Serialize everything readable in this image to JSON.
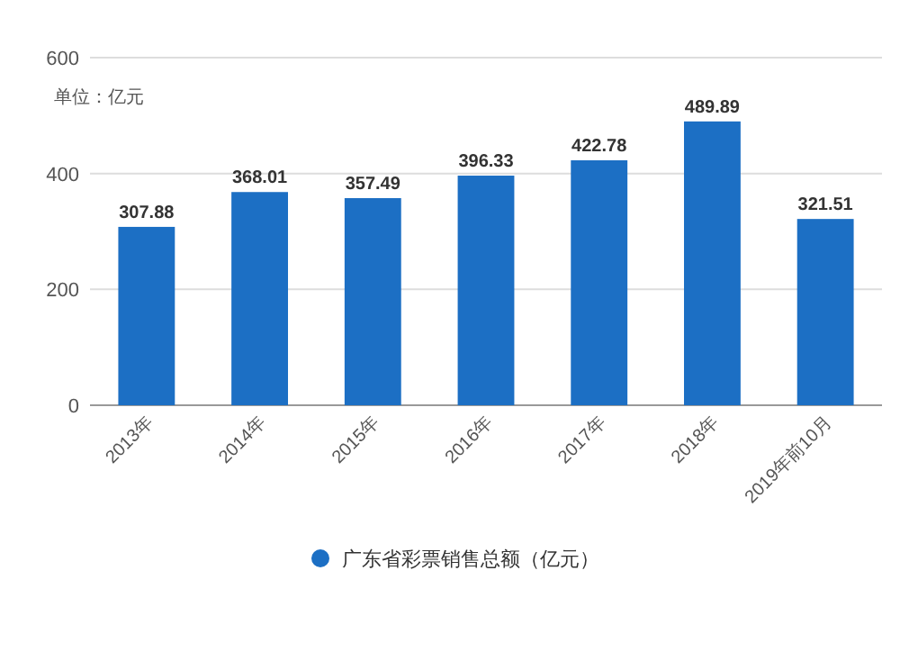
{
  "chart_data": {
    "type": "bar",
    "ylabel": "单位：亿元",
    "categories": [
      "2013年",
      "2014年",
      "2015年",
      "2016年",
      "2017年",
      "2018年",
      "2019年前10月"
    ],
    "series": [
      {
        "name": "广东省彩票销售总额（亿元）",
        "color": "#1c6fc4",
        "values": [
          307.88,
          368.01,
          357.49,
          396.33,
          422.78,
          489.89,
          321.51
        ]
      }
    ],
    "ylim": [
      0,
      600
    ],
    "yticks": [
      0,
      200,
      400,
      600
    ],
    "grid": "y",
    "data_labels": true,
    "legend": "bottom"
  }
}
